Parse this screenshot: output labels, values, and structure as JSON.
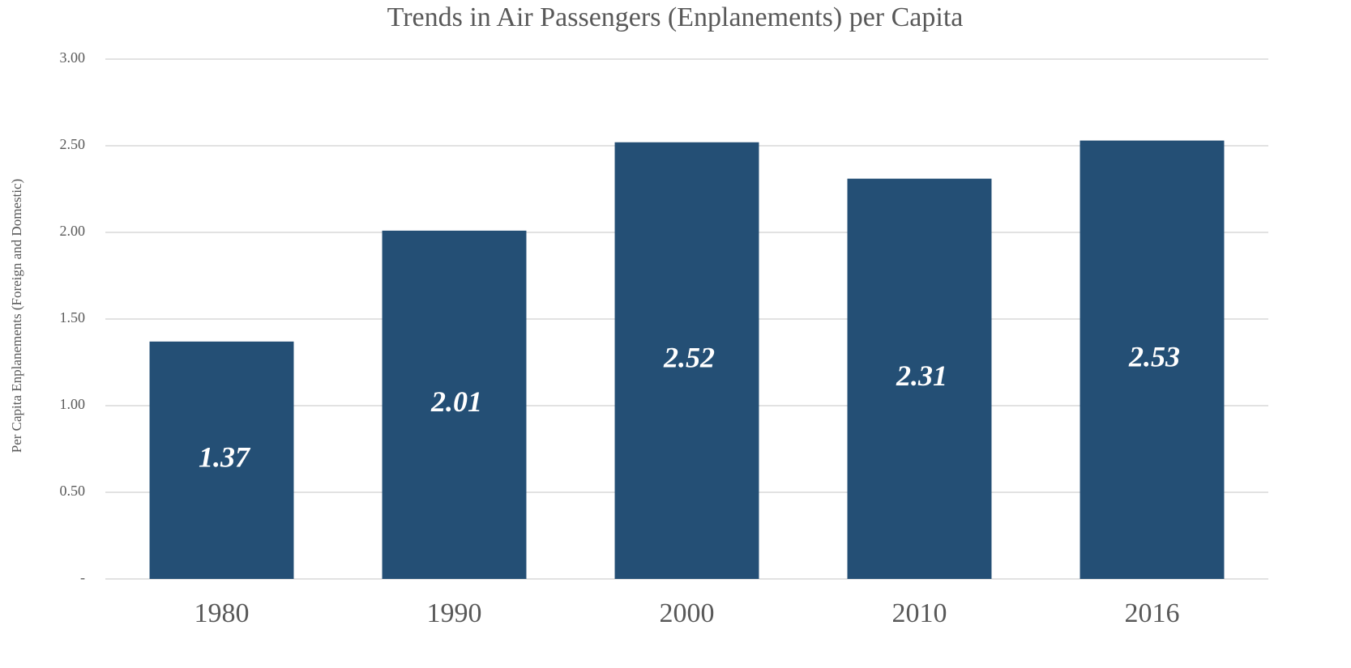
{
  "chart_data": {
    "type": "bar",
    "title": "Trends in Air Passengers (Enplanements) per Capita",
    "y_axis_label": "Per Capita Enplanements (Foreign and Domestic)",
    "categories": [
      "1980",
      "1990",
      "2000",
      "2010",
      "2016"
    ],
    "values": [
      1.37,
      2.01,
      2.52,
      2.31,
      2.53
    ],
    "color": "#244f75",
    "ylim": [
      0,
      3
    ],
    "yticks": [
      {
        "value": 0,
        "label": "-"
      },
      {
        "value": 0.5,
        "label": "0.50"
      },
      {
        "value": 1,
        "label": "1.00"
      },
      {
        "value": 1.5,
        "label": "1.50"
      },
      {
        "value": 2,
        "label": "2.00"
      },
      {
        "value": 2.5,
        "label": "2.50"
      },
      {
        "value": 3,
        "label": "3.00"
      }
    ],
    "grid": true
  }
}
